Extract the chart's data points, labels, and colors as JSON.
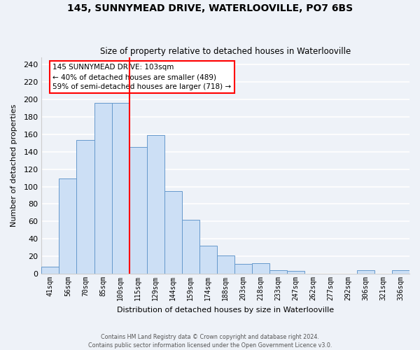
{
  "title": "145, SUNNYMEAD DRIVE, WATERLOOVILLE, PO7 6BS",
  "subtitle": "Size of property relative to detached houses in Waterlooville",
  "xlabel": "Distribution of detached houses by size in Waterlooville",
  "ylabel": "Number of detached properties",
  "bin_labels": [
    "41sqm",
    "56sqm",
    "70sqm",
    "85sqm",
    "100sqm",
    "115sqm",
    "129sqm",
    "144sqm",
    "159sqm",
    "174sqm",
    "188sqm",
    "203sqm",
    "218sqm",
    "233sqm",
    "247sqm",
    "262sqm",
    "277sqm",
    "292sqm",
    "306sqm",
    "321sqm",
    "336sqm"
  ],
  "bar_heights": [
    8,
    109,
    153,
    196,
    196,
    145,
    159,
    95,
    62,
    32,
    21,
    11,
    12,
    4,
    3,
    0,
    0,
    0,
    4,
    0,
    4
  ],
  "bar_color": "#ccdff5",
  "bar_edge_color": "#6699cc",
  "vline_x": 4.5,
  "vline_color": "red",
  "annotation_title": "145 SUNNYMEAD DRIVE: 103sqm",
  "annotation_line1": "← 40% of detached houses are smaller (489)",
  "annotation_line2": "59% of semi-detached houses are larger (718) →",
  "annotation_box_color": "white",
  "annotation_box_edge_color": "red",
  "ylim": [
    0,
    248
  ],
  "yticks": [
    0,
    20,
    40,
    60,
    80,
    100,
    120,
    140,
    160,
    180,
    200,
    220,
    240
  ],
  "footer_line1": "Contains HM Land Registry data © Crown copyright and database right 2024.",
  "footer_line2": "Contains public sector information licensed under the Open Government Licence v3.0.",
  "bg_color": "#eef2f8",
  "grid_color": "#ffffff",
  "spine_color": "#cccccc"
}
